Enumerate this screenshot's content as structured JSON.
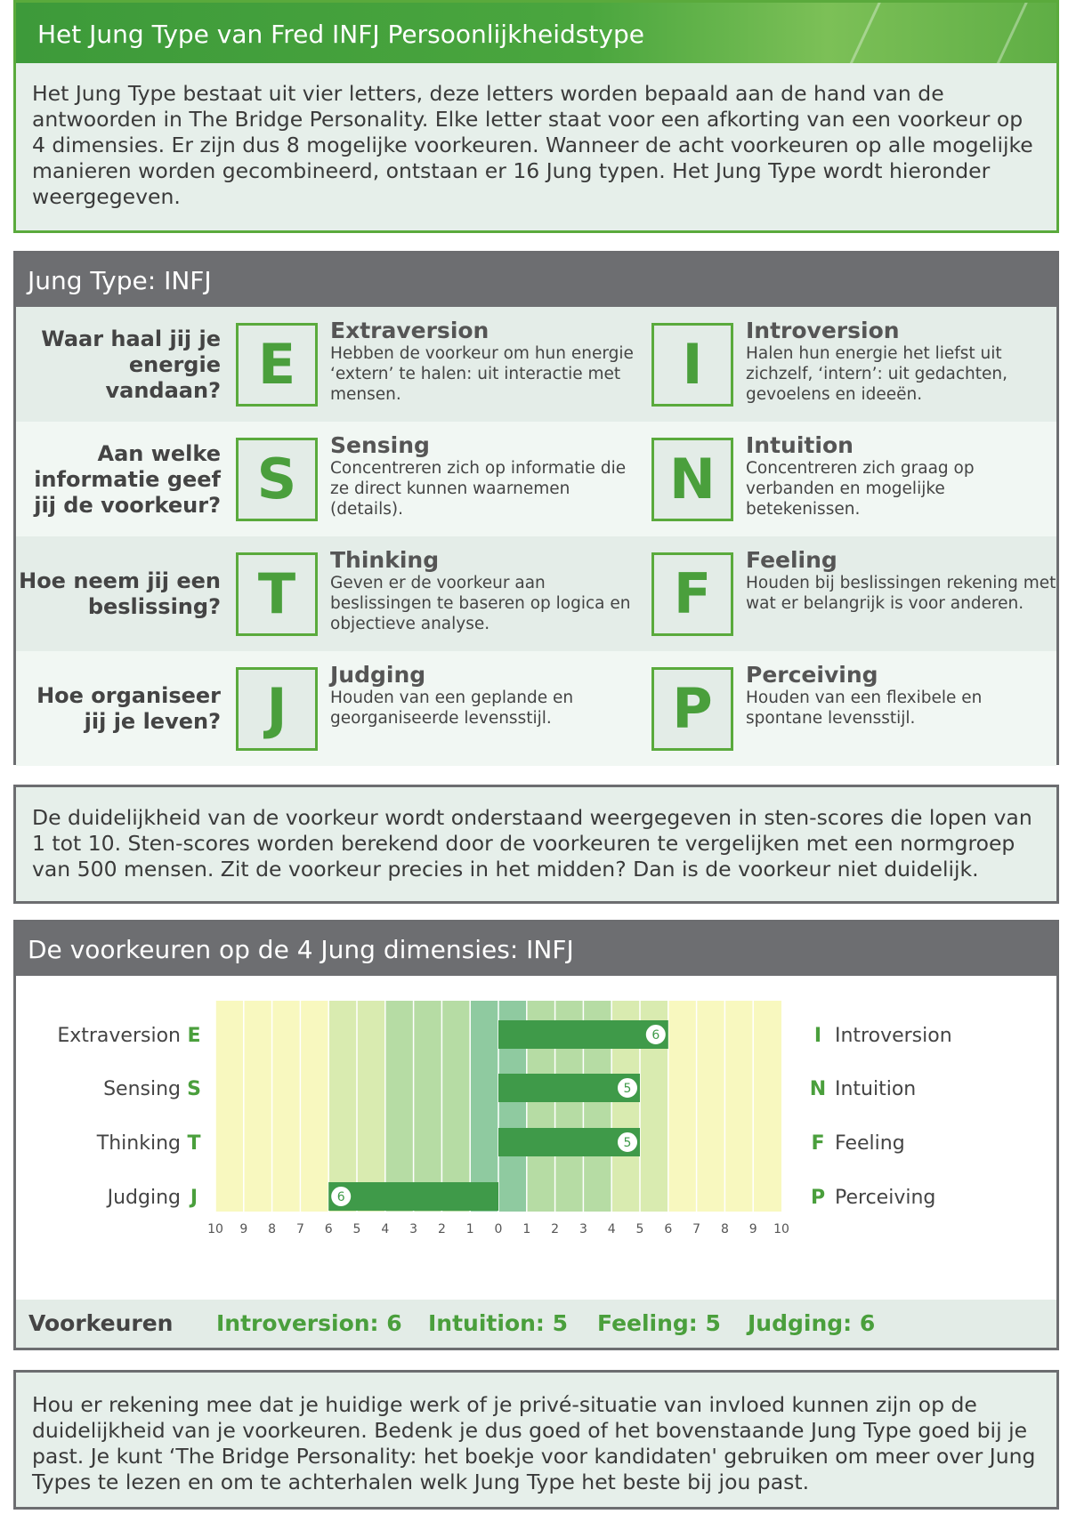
{
  "intro": {
    "title": "Het Jung Type van Fred INFJ Persoonlijkheidstype",
    "text": "Het Jung Type bestaat uit vier letters, deze letters worden bepaald aan de hand van de antwoorden in The Bridge Personality. Elke letter staat voor een afkorting van een voorkeur op 4 dimensies. Er zijn dus 8 mogelijke voorkeuren. Wanneer de acht voorkeuren op alle mogelijke manieren worden gecombineerd, ontstaan er 16 Jung typen. Het Jung Type wordt hieronder weergegeven."
  },
  "type_table": {
    "title": "Jung Type: INFJ",
    "rows": [
      {
        "question": "Waar haal jij je energie vandaan?",
        "left": {
          "letter": "E",
          "title": "Extraversion",
          "desc": "Hebben de voorkeur om hun energie ‘extern’ te halen: uit interactie met mensen."
        },
        "right": {
          "letter": "I",
          "title": "Introversion",
          "desc": "Halen hun energie het liefst uit zichzelf, ‘intern’: uit gedachten, gevoelens en ideeën."
        }
      },
      {
        "question": "Aan welke informatie geef jij de voorkeur?",
        "left": {
          "letter": "S",
          "title": "Sensing",
          "desc": "Concentreren zich op informatie die ze direct kunnen waarnemen (details)."
        },
        "right": {
          "letter": "N",
          "title": "Intuition",
          "desc": "Concentreren zich graag op verbanden en mogelijke betekenissen."
        }
      },
      {
        "question": "Hoe neem jij een beslissing?",
        "left": {
          "letter": "T",
          "title": "Thinking",
          "desc": "Geven er de voorkeur aan beslissingen te baseren op logica en objectieve analyse."
        },
        "right": {
          "letter": "F",
          "title": "Feeling",
          "desc": "Houden bij beslissingen rekening met wat er belangrijk is voor anderen."
        }
      },
      {
        "question": "Hoe organiseer jij je leven?",
        "left": {
          "letter": "J",
          "title": "Judging",
          "desc": "Houden van een geplande en georganiseerde levensstijl."
        },
        "right": {
          "letter": "P",
          "title": "Perceiving",
          "desc": "Houden van een flexibele en spontane levensstijl."
        }
      }
    ]
  },
  "sten_info": {
    "text": "De duidelijkheid van de voorkeur wordt onderstaand weergegeven in sten-scores die lopen van 1 tot 10. Sten-scores worden berekend door de voorkeuren te vergelijken met een normgroep van 500 mensen. Zit de voorkeur precies in het midden? Dan is de voorkeur niet duidelijk."
  },
  "dimensions": {
    "title": "De voorkeuren op de 4 Jung dimensies: INFJ",
    "summary_label": "Voorkeuren",
    "summary_items": [
      "Introversion: 6",
      "Intuition: 5",
      "Feeling: 5",
      "Judging: 6"
    ]
  },
  "chart_data": {
    "type": "bar",
    "orientation": "diverging-horizontal",
    "x_ticks_left": [
      "10",
      "9",
      "8",
      "7",
      "6",
      "5",
      "4",
      "3",
      "2",
      "1",
      "0"
    ],
    "x_ticks_right": [
      "1",
      "2",
      "3",
      "4",
      "5",
      "6",
      "7",
      "8",
      "9",
      "10"
    ],
    "xlim": [
      -10,
      10
    ],
    "rows": [
      {
        "left_label": "Extraversion",
        "left_letter": "E",
        "right_letter": "I",
        "right_label": "Introversion",
        "side": "right",
        "value": 6
      },
      {
        "left_label": "Sensing",
        "left_letter": "S",
        "right_letter": "N",
        "right_label": "Intuition",
        "side": "right",
        "value": 5
      },
      {
        "left_label": "Thinking",
        "left_letter": "T",
        "right_letter": "F",
        "right_label": "Feeling",
        "side": "right",
        "value": 5
      },
      {
        "left_label": "Judging",
        "left_letter": "J",
        "right_letter": "P",
        "right_label": "Perceiving",
        "side": "left",
        "value": 6
      }
    ],
    "colors": {
      "bar": "#3f9a49",
      "band_outer": "#f8f8bf",
      "band_mid": "#d9ebb0",
      "band_inner": "#b6dca4",
      "band_center": "#8fcaa0",
      "letter": "#4a9f3c"
    }
  },
  "closing": {
    "text": "Hou er rekening mee dat je huidige werk of je privé-situatie van invloed kunnen zijn op de duidelijkheid van je voorkeuren. Bedenk je dus goed of het bovenstaande Jung Type goed bij je past. Je kunt ‘The Bridge Personality: het boekje voor kandidaten' gebruiken om meer over Jung Types te lezen en om te achterhalen welk Jung Type het beste bij jou past."
  }
}
